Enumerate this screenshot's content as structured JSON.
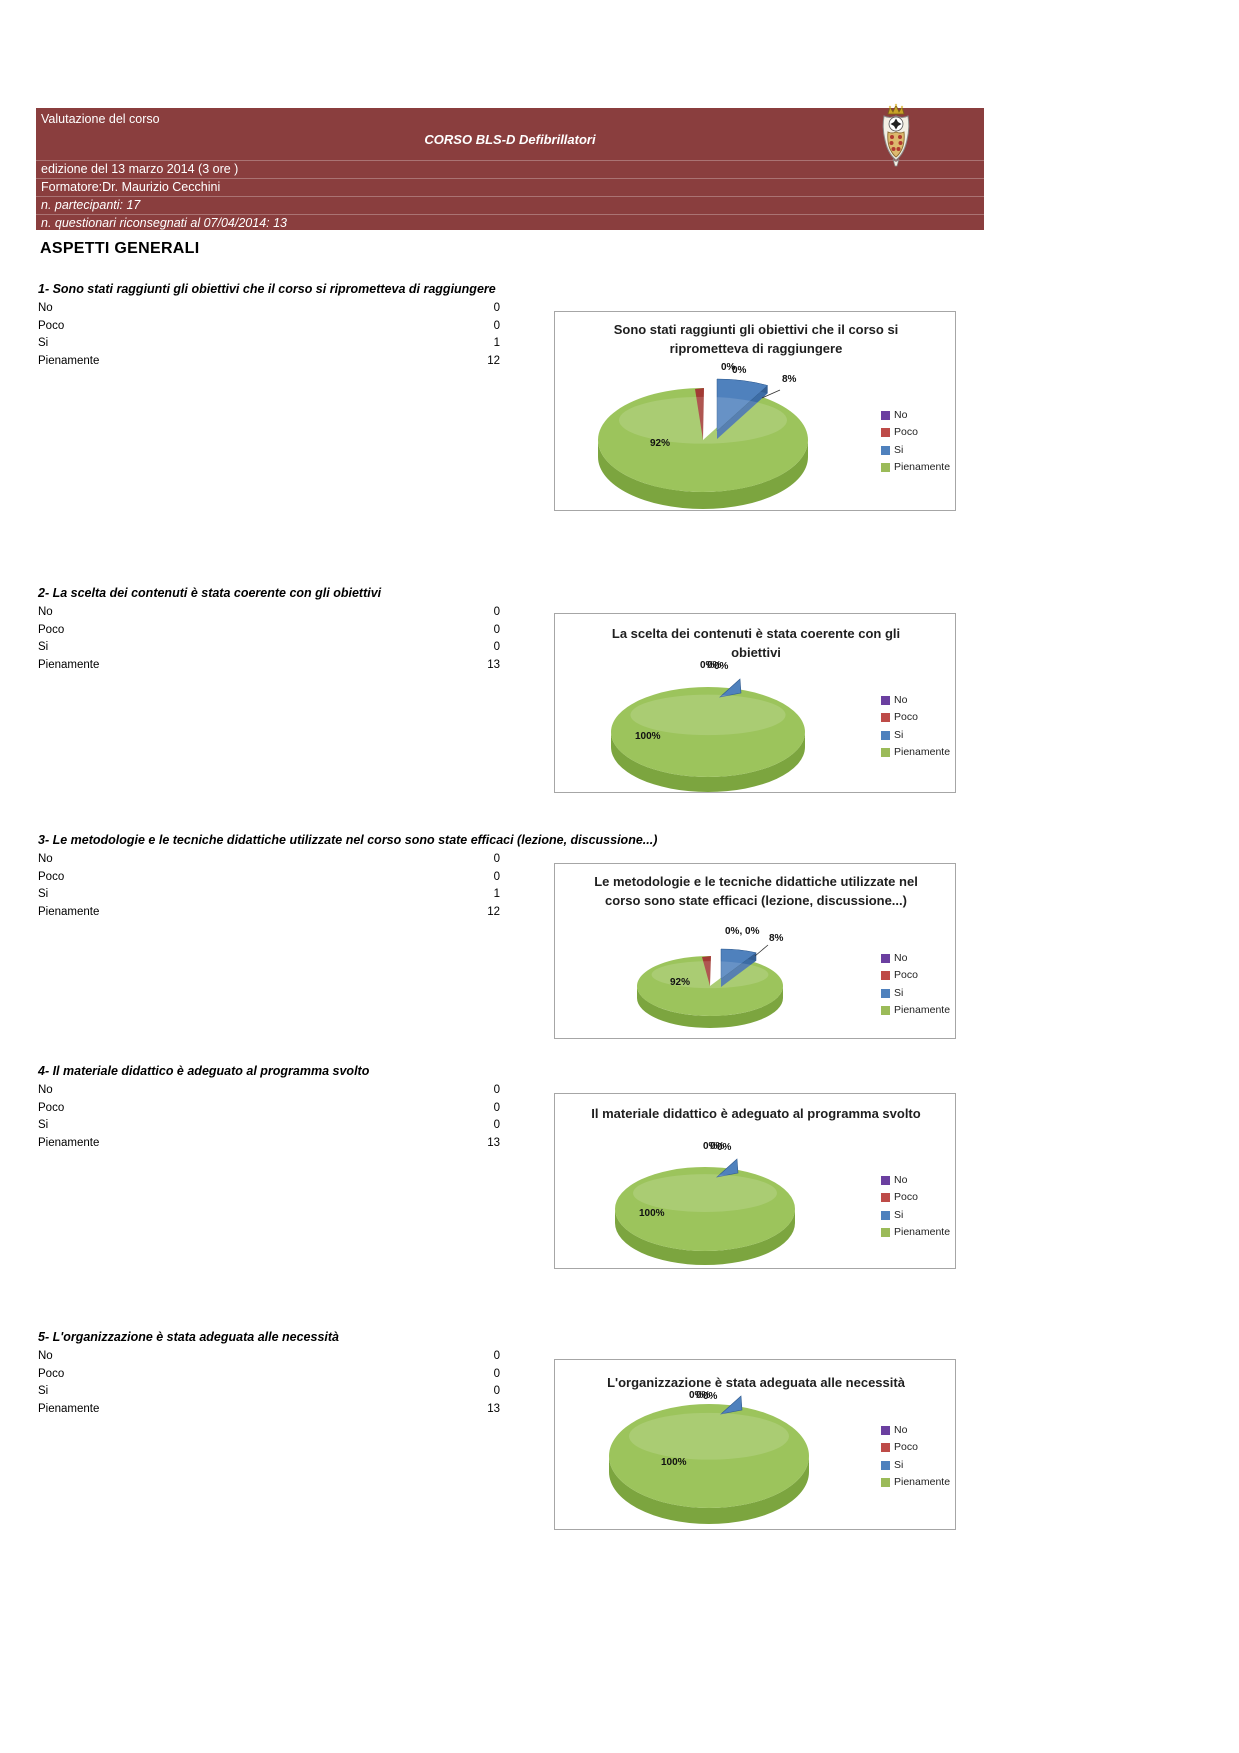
{
  "header": {
    "title": "Valutazione del corso",
    "course_title": "CORSO BLS-D Defibrillatori",
    "edition": "edizione del 13 marzo 2014 (3 ore )",
    "trainer": "Formatore:Dr. Maurizio Cecchini",
    "participants": "n. partecipanti: 17",
    "questionnaires": "n. questionari riconsegnati al 07/04/2014: 13",
    "band_color": "#8A3E3E",
    "logo_icon": "heraldic-crest-icon"
  },
  "section_title": "ASPETTI GENERALI",
  "legend": {
    "items": [
      {
        "label": "No",
        "color": "#6B3FA0"
      },
      {
        "label": "Poco",
        "color": "#BE4B48"
      },
      {
        "label": "Si",
        "color": "#4F81BD"
      },
      {
        "label": "Pienamente",
        "color": "#9BBB59"
      }
    ]
  },
  "pie_colors": {
    "green_top": "#9CC45C",
    "green_side": "#7CA53F",
    "blue": "#4F81BD",
    "red_sliver": "#A23B35"
  },
  "questions": [
    {
      "heading": "1- Sono stati raggiunti gli obiettivi che il corso si riprometteva di raggiungere",
      "rows": [
        {
          "label": "No",
          "value": "0"
        },
        {
          "label": "Poco",
          "value": "0"
        },
        {
          "label": "Si",
          "value": "1"
        },
        {
          "label": "Pienamente",
          "value": "12"
        }
      ],
      "chart": {
        "title": "Sono stati raggiunti gli obiettivi che il corso si riprometteva di raggiungere",
        "labels": {
          "zero1": "0%",
          "zero2": "0%",
          "si": "8%",
          "main": "92%"
        }
      }
    },
    {
      "heading": "2- La scelta dei contenuti è stata coerente con gli obiettivi",
      "rows": [
        {
          "label": "No",
          "value": "0"
        },
        {
          "label": "Poco",
          "value": "0"
        },
        {
          "label": "Si",
          "value": "0"
        },
        {
          "label": "Pienamente",
          "value": "13"
        }
      ],
      "chart": {
        "title": "La scelta dei contenuti è stata coerente con gli obiettivi",
        "labels": {
          "zero1": "0%",
          "zero2": "0%",
          "zero3": "0%",
          "main": "100%"
        }
      }
    },
    {
      "heading": "3- Le metodologie e le tecniche didattiche utilizzate nel corso sono state efficaci (lezione, discussione...)",
      "rows": [
        {
          "label": "No",
          "value": "0"
        },
        {
          "label": "Poco",
          "value": "0"
        },
        {
          "label": "Si",
          "value": "1"
        },
        {
          "label": "Pienamente",
          "value": "12"
        }
      ],
      "chart": {
        "title": "Le metodologie e le tecniche didattiche utilizzate nel corso sono state efficaci (lezione, discussione...)",
        "labels": {
          "zeros": "0%, 0%",
          "si": "8%",
          "main": "92%"
        }
      }
    },
    {
      "heading": "4- Il materiale didattico è adeguato al programma svolto",
      "rows": [
        {
          "label": "No",
          "value": "0"
        },
        {
          "label": "Poco",
          "value": "0"
        },
        {
          "label": "Si",
          "value": "0"
        },
        {
          "label": "Pienamente",
          "value": "13"
        }
      ],
      "chart": {
        "title": "Il materiale didattico è adeguato al programma svolto",
        "labels": {
          "zero1": "0%",
          "zero2": "0%",
          "zero3": "0%",
          "main": "100%"
        }
      }
    },
    {
      "heading": "5- L'organizzazione è stata adeguata alle necessità",
      "rows": [
        {
          "label": "No",
          "value": "0"
        },
        {
          "label": "Poco",
          "value": "0"
        },
        {
          "label": "Si",
          "value": "0"
        },
        {
          "label": "Pienamente",
          "value": "13"
        }
      ],
      "chart": {
        "title": "L'organizzazione è stata adeguata alle necessità",
        "labels": {
          "zero1": "0%",
          "zero2": "0%",
          "zero3": "0%",
          "main": "100%"
        }
      }
    }
  ],
  "chart_data": [
    {
      "type": "pie",
      "title": "Sono stati raggiunti gli obiettivi che il corso si riprometteva di raggiungere",
      "categories": [
        "No",
        "Poco",
        "Si",
        "Pienamente"
      ],
      "values": [
        0,
        0,
        8,
        92
      ],
      "counts": [
        0,
        0,
        1,
        12
      ],
      "unit": "%",
      "legend_position": "right"
    },
    {
      "type": "pie",
      "title": "La scelta dei contenuti è stata coerente con gli obiettivi",
      "categories": [
        "No",
        "Poco",
        "Si",
        "Pienamente"
      ],
      "values": [
        0,
        0,
        0,
        100
      ],
      "counts": [
        0,
        0,
        0,
        13
      ],
      "unit": "%",
      "legend_position": "right"
    },
    {
      "type": "pie",
      "title": "Le metodologie e le tecniche didattiche utilizzate nel corso sono state efficaci (lezione, discussione...)",
      "categories": [
        "No",
        "Poco",
        "Si",
        "Pienamente"
      ],
      "values": [
        0,
        0,
        8,
        92
      ],
      "counts": [
        0,
        0,
        1,
        12
      ],
      "unit": "%",
      "legend_position": "right"
    },
    {
      "type": "pie",
      "title": "Il materiale didattico è adeguato al programma svolto",
      "categories": [
        "No",
        "Poco",
        "Si",
        "Pienamente"
      ],
      "values": [
        0,
        0,
        0,
        100
      ],
      "counts": [
        0,
        0,
        0,
        13
      ],
      "unit": "%",
      "legend_position": "right"
    },
    {
      "type": "pie",
      "title": "L'organizzazione è stata adeguata alle necessità",
      "categories": [
        "No",
        "Poco",
        "Si",
        "Pienamente"
      ],
      "values": [
        0,
        0,
        0,
        100
      ],
      "counts": [
        0,
        0,
        0,
        13
      ],
      "unit": "%",
      "legend_position": "right"
    }
  ]
}
